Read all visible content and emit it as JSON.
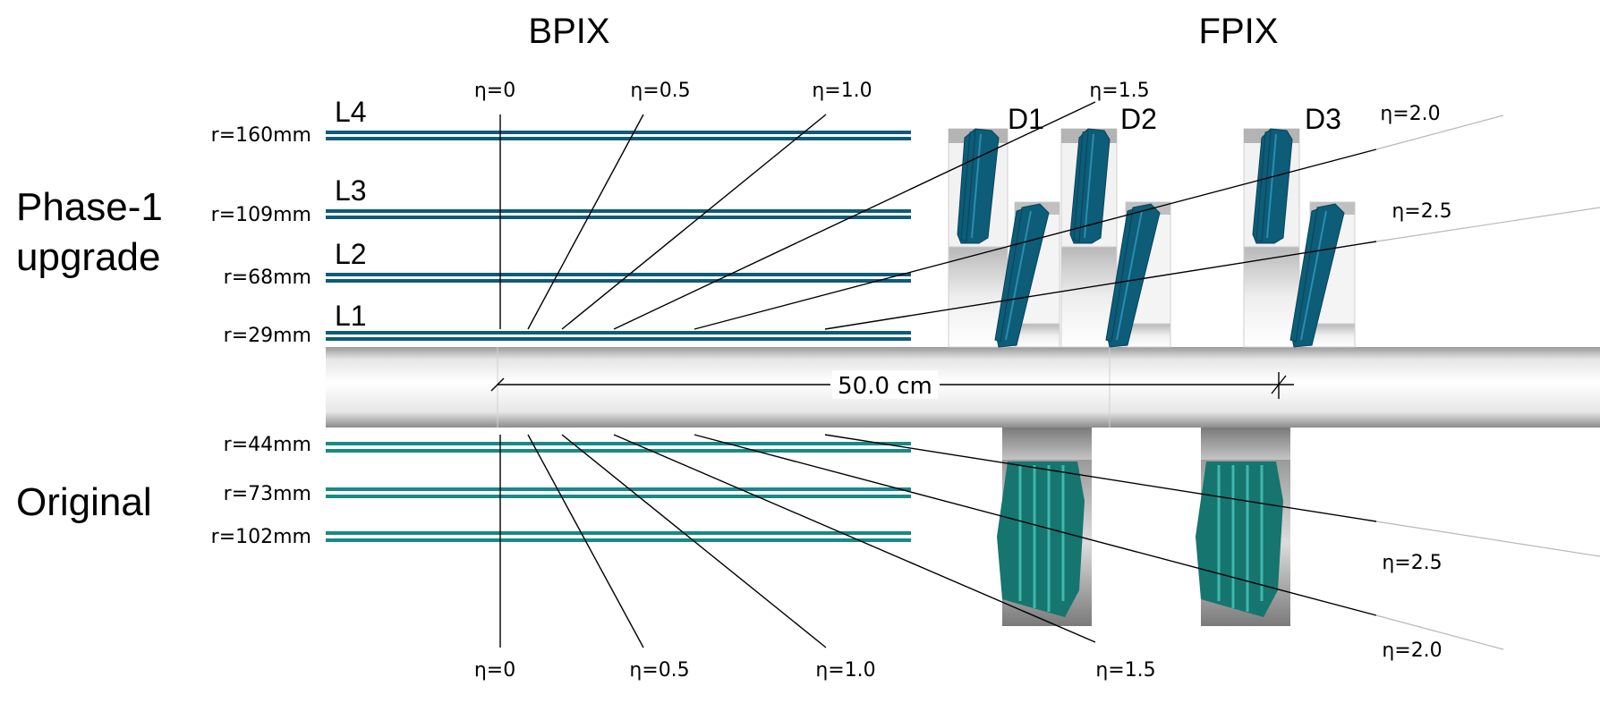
{
  "titles": {
    "bpix": "BPIX",
    "fpix": "FPIX"
  },
  "sections": {
    "phase1_line1": "Phase-1",
    "phase1_line2": "upgrade",
    "original": "Original"
  },
  "phase1_layers": [
    {
      "name": "L4",
      "radius": "r=160mm"
    },
    {
      "name": "L3",
      "radius": "r=109mm"
    },
    {
      "name": "L2",
      "radius": "r=68mm"
    },
    {
      "name": "L1",
      "radius": "r=29mm"
    }
  ],
  "phase1_disks": [
    "D1",
    "D2",
    "D3"
  ],
  "original_layers": [
    {
      "radius": "r=44mm"
    },
    {
      "radius": "r=73mm"
    },
    {
      "radius": "r=102mm"
    }
  ],
  "eta_upper": [
    "η=0",
    "η=0.5",
    "η=1.0",
    "η=1.5",
    "η=2.0",
    "η=2.5"
  ],
  "eta_lower": [
    "η=0",
    "η=0.5",
    "η=1.0",
    "η=1.5",
    "η=2.5",
    "η=2.0"
  ],
  "scale_label": "50.0 cm",
  "colors": {
    "phase1_module": "#0d5c78",
    "original_module": "#178a84",
    "beampipe_light": "#f4f4f4",
    "beampipe_dark": "#9a9a9a"
  }
}
